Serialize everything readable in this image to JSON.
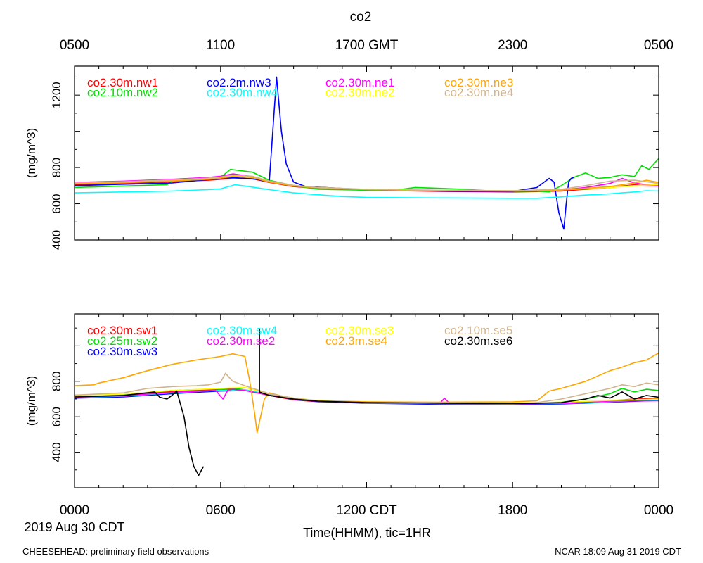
{
  "chart_data": [
    {
      "type": "line",
      "panel": "top",
      "title": "co2",
      "top_axis_ticks": [
        "0500",
        "1100",
        "1700 GMT",
        "2300",
        "0500"
      ],
      "ylabel": "(mg/m^3)",
      "ylim": [
        400,
        1360
      ],
      "yticks": [
        400,
        600,
        800,
        1200
      ],
      "ytick_labels": [
        "400",
        "600",
        "800",
        "1200"
      ],
      "xlim": [
        0,
        24
      ],
      "series": [
        {
          "name": "co2.30m.nw1",
          "color": "#ff0000",
          "x": [
            0,
            2,
            4,
            5.5,
            6,
            6.5,
            7.3,
            8,
            9,
            10,
            12,
            15,
            18,
            20,
            21,
            22,
            23,
            23.5,
            24
          ],
          "y": [
            705,
            712,
            722,
            730,
            735,
            742,
            738,
            718,
            695,
            685,
            675,
            668,
            665,
            670,
            680,
            690,
            705,
            700,
            698
          ]
        },
        {
          "name": "co2.10m.nw2",
          "color": "#00e000",
          "x": [
            0,
            2,
            3.8,
            4,
            5.5,
            6,
            6.4,
            7.3,
            8,
            9,
            10,
            13,
            14,
            16,
            17,
            18,
            19,
            19.5,
            20,
            20.5,
            21,
            21.5,
            22,
            22.5,
            23,
            23.3,
            23.6,
            24
          ],
          "y": [
            690,
            698,
            705,
            725,
            735,
            745,
            790,
            775,
            730,
            700,
            680,
            672,
            690,
            680,
            672,
            668,
            670,
            665,
            700,
            745,
            770,
            740,
            745,
            760,
            750,
            810,
            790,
            850
          ]
        },
        {
          "name": "co2.2m.nw3",
          "color": "#0000ff",
          "x": [
            0,
            4,
            6,
            6.5,
            7.5,
            8,
            8.3,
            8.5,
            8.7,
            9,
            9.5,
            12,
            15,
            18,
            19,
            19.5,
            19.7,
            19.9,
            20.1,
            20.2,
            20.3,
            20.4,
            20.5
          ],
          "y": [
            700,
            715,
            740,
            745,
            735,
            720,
            1300,
            1000,
            820,
            720,
            695,
            678,
            670,
            668,
            690,
            740,
            720,
            550,
            460,
            600,
            720,
            740,
            745
          ]
        },
        {
          "name": "co2.30m.nw4",
          "color": "#00ffff",
          "x": [
            0,
            2,
            4,
            5.5,
            6,
            6.6,
            7,
            8,
            9,
            10,
            11,
            12,
            15,
            18,
            19,
            20,
            21,
            22,
            23,
            23.5,
            24
          ],
          "y": [
            660,
            665,
            670,
            678,
            682,
            705,
            698,
            678,
            660,
            650,
            640,
            635,
            632,
            630,
            630,
            638,
            648,
            655,
            665,
            672,
            670
          ]
        },
        {
          "name": "co2.30m.ne1",
          "color": "#ff00ff",
          "x": [
            0,
            2,
            4,
            5.5,
            6,
            6.5,
            7.3,
            8,
            9,
            10,
            12,
            15,
            18,
            20,
            21,
            22,
            22.5,
            23,
            23.5,
            24
          ],
          "y": [
            718,
            725,
            735,
            745,
            752,
            765,
            750,
            725,
            700,
            688,
            678,
            672,
            670,
            675,
            690,
            712,
            740,
            715,
            705,
            700
          ]
        },
        {
          "name": "co2.30m.ne2",
          "color": "#ffff00",
          "x": [
            0,
            2,
            4,
            5.5,
            6,
            6.5,
            7.3,
            8,
            9,
            10,
            12,
            15,
            18,
            20,
            22,
            23,
            24
          ],
          "y": [
            712,
            718,
            728,
            738,
            742,
            752,
            748,
            722,
            700,
            690,
            680,
            675,
            672,
            676,
            690,
            700,
            705
          ]
        },
        {
          "name": "co2.30m.ne3",
          "color": "#ffa500",
          "x": [
            0,
            2,
            4,
            5.5,
            6,
            6.5,
            7.3,
            8,
            9,
            10,
            12,
            15,
            18,
            20,
            22,
            23,
            23.5,
            24
          ],
          "y": [
            710,
            716,
            726,
            735,
            742,
            750,
            745,
            720,
            698,
            688,
            678,
            672,
            670,
            676,
            695,
            715,
            730,
            718
          ]
        },
        {
          "name": "co2.30m.ne4",
          "color": "#d2b48c",
          "x": [
            0,
            2,
            4,
            5.5,
            6,
            6.5,
            7.3,
            8,
            9,
            10,
            12,
            15,
            18,
            20,
            21,
            22,
            23,
            24
          ],
          "y": [
            716,
            722,
            732,
            742,
            748,
            758,
            752,
            726,
            702,
            690,
            680,
            674,
            672,
            680,
            700,
            725,
            730,
            712
          ]
        }
      ]
    },
    {
      "type": "line",
      "panel": "bottom",
      "ylabel": "(mg/m^3)",
      "ylim": [
        200,
        1180
      ],
      "yticks": [
        400,
        600,
        800
      ],
      "ytick_labels": [
        "400",
        "600",
        "800"
      ],
      "xlim": [
        0,
        24
      ],
      "xticks": [
        0,
        6,
        12,
        18,
        24
      ],
      "xtick_labels": [
        "0000",
        "0600",
        "1200 CDT",
        "1800",
        "0000"
      ],
      "date_label": "2019 Aug 30 CDT",
      "xlabel": "Time(HHMM), tic=1HR",
      "series": [
        {
          "name": "co2.30m.sw1",
          "color": "#ff0000",
          "x": [
            0,
            2,
            4,
            6,
            6.5,
            7,
            8,
            9,
            10,
            12,
            15,
            18,
            20,
            22,
            23,
            24
          ],
          "y": [
            712,
            722,
            742,
            755,
            758,
            750,
            720,
            695,
            685,
            678,
            672,
            670,
            676,
            690,
            700,
            702
          ]
        },
        {
          "name": "co2.25m.sw2",
          "color": "#00e000",
          "x": [
            0,
            2,
            4,
            6,
            6.5,
            7,
            8,
            9,
            10,
            12,
            15,
            18,
            20,
            21,
            22,
            22.5,
            23,
            23.5,
            24
          ],
          "y": [
            716,
            726,
            748,
            758,
            762,
            752,
            725,
            700,
            688,
            682,
            678,
            676,
            682,
            700,
            730,
            760,
            740,
            755,
            748
          ]
        },
        {
          "name": "co2.30m.sw3",
          "color": "#0000ff",
          "x": [
            0,
            2,
            4,
            6,
            7,
            8,
            9,
            10,
            12,
            15,
            18,
            20,
            22,
            24
          ],
          "y": [
            705,
            712,
            730,
            745,
            748,
            722,
            698,
            686,
            676,
            670,
            668,
            672,
            682,
            692
          ]
        },
        {
          "name": "co2.30m.sw4",
          "color": "#00ffff",
          "x": [
            0,
            2,
            4,
            6,
            7,
            8,
            9,
            10,
            12,
            15,
            18,
            20,
            22,
            24
          ],
          "y": [
            708,
            716,
            735,
            750,
            752,
            725,
            700,
            690,
            680,
            675,
            672,
            675,
            685,
            695
          ]
        },
        {
          "name": "co2.30m.se2",
          "color": "#ff00ff",
          "x": [
            0,
            2,
            4,
            5.8,
            6.1,
            6.3,
            6.5,
            6.7,
            7,
            8,
            9,
            10,
            12,
            15,
            15.2,
            15.4,
            18,
            20,
            22,
            24
          ],
          "y": [
            710,
            718,
            738,
            748,
            700,
            750,
            755,
            752,
            748,
            722,
            700,
            688,
            680,
            675,
            705,
            676,
            672,
            676,
            688,
            690
          ]
        },
        {
          "name": "co2.30m.se3",
          "color": "#ffff00",
          "x": [
            0,
            2,
            4,
            6,
            7,
            8,
            9,
            10,
            12,
            15,
            18,
            20,
            22,
            24
          ],
          "y": [
            718,
            728,
            748,
            760,
            765,
            730,
            705,
            692,
            684,
            680,
            678,
            682,
            692,
            700
          ]
        },
        {
          "name": "co2.3m.se4",
          "color": "#ffa500",
          "x": [
            0,
            0.8,
            1,
            2,
            3,
            4,
            5,
            6,
            6.5,
            7,
            7.2,
            7.4,
            7.5,
            7.8,
            8,
            9,
            10,
            12,
            15,
            18,
            19,
            19.5,
            20,
            20.5,
            21,
            21.5,
            22,
            22.5,
            23,
            23.5,
            24
          ],
          "y": [
            775,
            780,
            790,
            820,
            860,
            895,
            920,
            940,
            955,
            940,
            800,
            620,
            510,
            700,
            735,
            700,
            690,
            684,
            682,
            684,
            690,
            745,
            760,
            780,
            800,
            830,
            860,
            880,
            905,
            920,
            960
          ]
        },
        {
          "name": "co2.10m.se5",
          "color": "#d2b48c",
          "x": [
            0,
            2,
            3,
            4,
            5,
            5.5,
            6,
            6.2,
            6.5,
            7,
            8,
            9,
            10,
            12,
            15,
            18,
            19,
            20,
            21,
            22,
            22.5,
            23,
            23.5,
            24
          ],
          "y": [
            722,
            735,
            760,
            770,
            775,
            780,
            795,
            845,
            800,
            775,
            730,
            705,
            690,
            678,
            674,
            672,
            680,
            700,
            730,
            760,
            780,
            770,
            790,
            780
          ]
        },
        {
          "name": "co2.30m.se6",
          "color": "#000000",
          "x": [
            0,
            2,
            3.3,
            3.5,
            3.8,
            4,
            4.2,
            4.5,
            4.7,
            4.9,
            5.1,
            5.3,
            null,
            7.6,
            7.6,
            7.7,
            8,
            9,
            10,
            12,
            15,
            18,
            19,
            20,
            20.5,
            21,
            21.5,
            22,
            22.5,
            23,
            23.5,
            24
          ],
          "y": [
            712,
            720,
            740,
            710,
            700,
            720,
            745,
            600,
            430,
            320,
            270,
            320,
            null,
            1100,
            740,
            735,
            720,
            700,
            688,
            680,
            676,
            674,
            676,
            680,
            690,
            700,
            720,
            705,
            740,
            700,
            720,
            710
          ]
        }
      ]
    }
  ],
  "footer": {
    "left": "CHEESEHEAD: preliminary field observations",
    "right": "NCAR 18:09 Aug 31 2019 CDT"
  }
}
